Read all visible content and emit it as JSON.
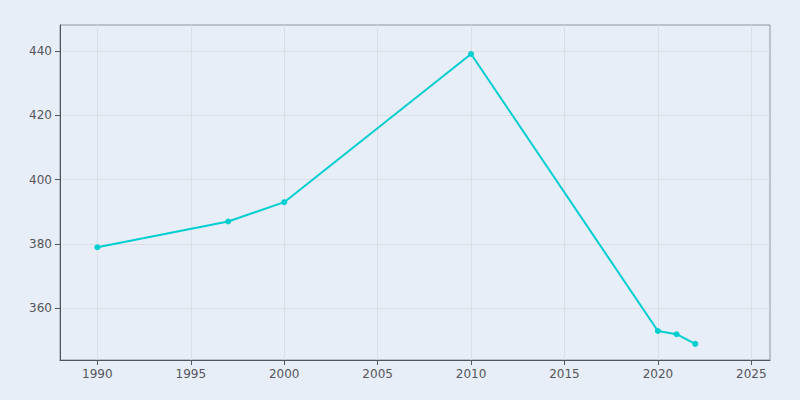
{
  "chart_data": {
    "type": "line",
    "x": [
      1990,
      1997,
      2000,
      2010,
      2020,
      2021,
      2022
    ],
    "values": [
      379,
      387,
      393,
      439,
      353,
      352,
      349
    ],
    "color": "#00CED1",
    "marker": "circle",
    "xlim": [
      1988,
      2026
    ],
    "ylim": [
      344,
      448
    ],
    "xticks": [
      1990,
      1995,
      2000,
      2005,
      2010,
      2015,
      2020,
      2025
    ],
    "yticks": [
      360,
      380,
      400,
      420,
      440
    ],
    "grid": true
  }
}
